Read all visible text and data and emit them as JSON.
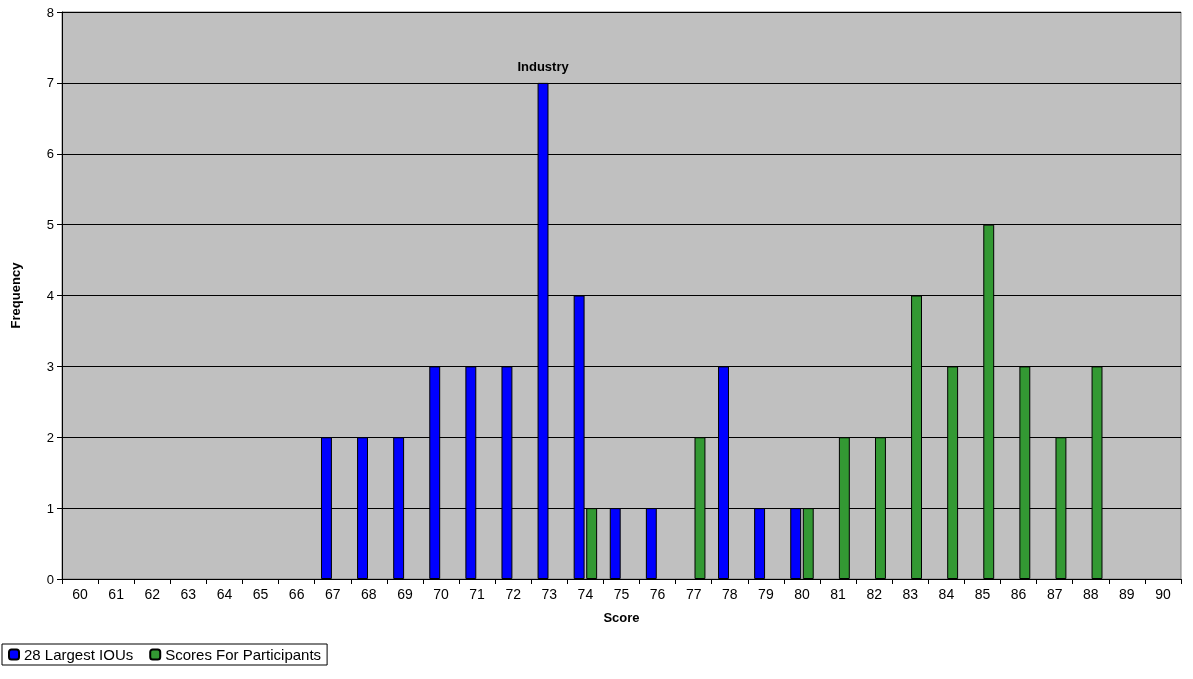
{
  "chart_data": {
    "type": "bar",
    "xlabel": "Score",
    "ylabel": "Frequency",
    "categories": [
      "60",
      "61",
      "62",
      "63",
      "64",
      "65",
      "66",
      "67",
      "68",
      "69",
      "70",
      "71",
      "72",
      "73",
      "74",
      "75",
      "76",
      "77",
      "78",
      "79",
      "80",
      "81",
      "82",
      "83",
      "84",
      "85",
      "86",
      "87",
      "88",
      "89",
      "90"
    ],
    "series": [
      {
        "name": "28 Largest IOUs",
        "color": "#0000ff",
        "values": [
          null,
          null,
          null,
          null,
          null,
          null,
          null,
          2,
          2,
          2,
          3,
          3,
          3,
          7,
          4,
          1,
          1,
          null,
          3,
          1,
          1,
          null,
          null,
          null,
          null,
          null,
          null,
          null,
          null,
          null,
          null
        ]
      },
      {
        "name": "Scores For Participants",
        "color": "#339933",
        "values": [
          null,
          null,
          null,
          null,
          null,
          null,
          null,
          null,
          null,
          null,
          null,
          null,
          null,
          null,
          1,
          null,
          null,
          2,
          null,
          null,
          1,
          2,
          2,
          4,
          3,
          5,
          3,
          2,
          3,
          null,
          null
        ]
      }
    ],
    "ylim": [
      0,
      8
    ],
    "yticks": [
      0,
      1,
      2,
      3,
      4,
      5,
      6,
      7,
      8
    ],
    "grid": "y",
    "legend": "bottom left",
    "annotations": [
      {
        "text": "Industry",
        "x": "73",
        "y": 7
      }
    ]
  }
}
